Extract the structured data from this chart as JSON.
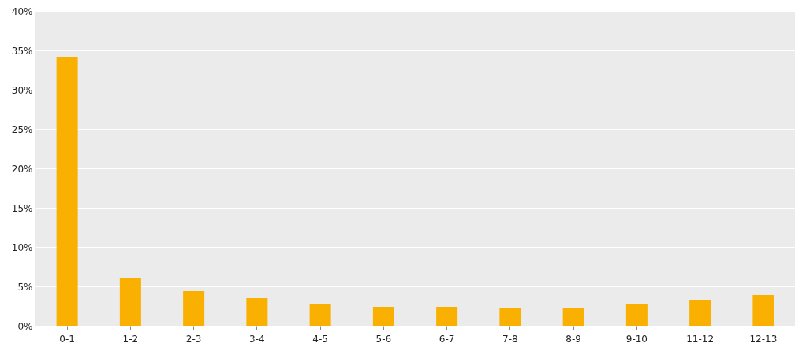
{
  "chart_data": {
    "type": "bar",
    "categories": [
      "0-1",
      "1-2",
      "2-3",
      "3-4",
      "4-5",
      "5-6",
      "6-7",
      "7-8",
      "8-9",
      "9-10",
      "11-12",
      "12-13"
    ],
    "values": [
      34.1,
      6.1,
      4.4,
      3.5,
      2.8,
      2.4,
      2.4,
      2.2,
      2.3,
      2.8,
      3.3,
      3.9
    ],
    "color": "#f9b000",
    "ylim": [
      0,
      40
    ],
    "yticks": [
      {
        "value": 0,
        "label": "0%"
      },
      {
        "value": 5,
        "label": "5%"
      },
      {
        "value": 10,
        "label": "10%"
      },
      {
        "value": 15,
        "label": "15%"
      },
      {
        "value": 20,
        "label": "20%"
      },
      {
        "value": 25,
        "label": "25%"
      },
      {
        "value": 30,
        "label": "30%"
      },
      {
        "value": 35,
        "label": "35%"
      },
      {
        "value": 40,
        "label": "40%"
      }
    ],
    "grid": "y"
  }
}
